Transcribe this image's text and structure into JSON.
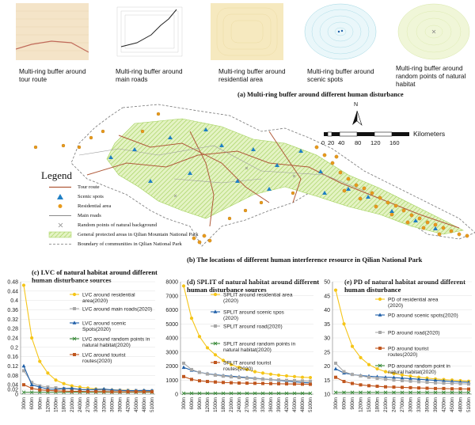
{
  "top_panel": {
    "thumbnails": [
      {
        "label": "Multi-ring buffer around tour route",
        "bg": "#f4e4c8"
      },
      {
        "label": "Multi-ring buffer around main roads",
        "bg": "#ffffff"
      },
      {
        "label": "Multi-ring buffer around residential area",
        "bg": "#f6e9bf"
      },
      {
        "label": "Multi-ring buffer around scenic spots",
        "bg": "#dff2f6"
      },
      {
        "label": "Multi-ring buffer around random points of natural habitat",
        "bg": "#f0f6d8"
      }
    ],
    "caption": "(a) Multi-ring buffer around different human disturbance"
  },
  "map_panel": {
    "north_label": "N",
    "scale_unit": "Kilometers",
    "scale_ticks": [
      "0",
      "20",
      "40",
      "80",
      "120",
      "160"
    ],
    "legend_title": "Legend",
    "legend_items": [
      {
        "label": "Tour route",
        "icon": "line-icon",
        "color": "#b05a3a"
      },
      {
        "label": "Scenic spots",
        "icon": "triangle-icon",
        "color": "#1f7fc4"
      },
      {
        "label": "Residential area",
        "icon": "dot-icon",
        "color": "#e89a1c"
      },
      {
        "label": "Main roads",
        "icon": "line-icon",
        "color": "#8a8a8a"
      },
      {
        "label": "Random points of natural background",
        "icon": "x-icon",
        "color": "#888888"
      },
      {
        "label": "General protected areas in Qilian Mountain National Park",
        "icon": "hatch-icon",
        "color": "#b7de7a"
      },
      {
        "label": "Boundary of communities in Qilian National Park",
        "icon": "dash-icon",
        "color": "#777777"
      }
    ],
    "caption": "(b) The locations of different human interference resource in Qilian National Park"
  },
  "chart_data": [
    {
      "type": "line",
      "title": "(c) LVC of natural habitat around different human disturbance sources",
      "x": [
        "300m",
        "600m",
        "900m",
        "1200m",
        "1500m",
        "1800m",
        "2100m",
        "2400m",
        "2700m",
        "3000m",
        "3300m",
        "3600m",
        "3900m",
        "4200m",
        "4500m",
        "4800m",
        "5100m"
      ],
      "ylim": [
        0,
        0.48
      ],
      "yticks": [
        "0",
        "0.02",
        "0.04",
        "0.08",
        "0.12",
        "0.16",
        "0.2",
        "0.24",
        "0.28",
        "0.32",
        "0.36",
        "0.4",
        "0.44",
        "0.48"
      ],
      "series": [
        {
          "name": "LVC around residential area(2020)",
          "color": "#f5c518",
          "marker": "circle",
          "values": [
            0.465,
            0.24,
            0.14,
            0.09,
            0.06,
            0.045,
            0.035,
            0.03,
            0.026,
            0.022,
            0.02,
            0.018,
            0.017,
            0.016,
            0.015,
            0.015,
            0.014
          ]
        },
        {
          "name": "LVC around main roads(2020)",
          "color": "#a8a8a8",
          "marker": "square",
          "values": [
            0.1,
            0.05,
            0.035,
            0.03,
            0.027,
            0.024,
            0.022,
            0.02,
            0.019,
            0.018,
            0.017,
            0.016,
            0.016,
            0.015,
            0.015,
            0.014,
            0.014
          ]
        },
        {
          "name": "LVC around scenic Spots(2020)",
          "color": "#1f5fa8",
          "marker": "triangle",
          "values": [
            0.12,
            0.04,
            0.03,
            0.022,
            0.02,
            0.024,
            0.025,
            0.02,
            0.018,
            0.02,
            0.022,
            0.018,
            0.016,
            0.015,
            0.015,
            0.016,
            0.015
          ]
        },
        {
          "name": "LVC around random points in natural habitat(2020)",
          "color": "#3a8a3a",
          "marker": "x",
          "values": [
            0.008,
            0.008,
            0.008,
            0.008,
            0.008,
            0.008,
            0.008,
            0.008,
            0.008,
            0.008,
            0.008,
            0.008,
            0.008,
            0.008,
            0.008,
            0.008,
            0.008
          ]
        },
        {
          "name": "LVC around tourist routes(2020)",
          "color": "#c0561e",
          "marker": "square",
          "values": [
            0.04,
            0.025,
            0.018,
            0.016,
            0.014,
            0.013,
            0.012,
            0.012,
            0.011,
            0.011,
            0.011,
            0.01,
            0.01,
            0.01,
            0.01,
            0.01,
            0.01
          ]
        }
      ]
    },
    {
      "type": "line",
      "title": "(d) SPLIT of natural habitat around different human disturbance sources",
      "x": [
        "300m",
        "600m",
        "900m",
        "1200m",
        "1500m",
        "1800m",
        "2100m",
        "2400m",
        "2700m",
        "3000m",
        "3300m",
        "3600m",
        "3900m",
        "4200m",
        "4500m",
        "4800m",
        "5100m"
      ],
      "ylim": [
        0,
        8000
      ],
      "yticks": [
        "0",
        "1000",
        "2000",
        "3000",
        "4000",
        "5000",
        "6000",
        "7000",
        "8000"
      ],
      "series": [
        {
          "name": "SPLIT around residential area (2020)",
          "color": "#f5c518",
          "marker": "circle",
          "values": [
            7700,
            5400,
            4100,
            3300,
            2800,
            2400,
            2100,
            1900,
            1750,
            1600,
            1500,
            1420,
            1350,
            1300,
            1250,
            1200,
            1180
          ]
        },
        {
          "name": "SPLIT around scenic spos (2020)",
          "color": "#1f5fa8",
          "marker": "triangle",
          "values": [
            1900,
            1700,
            1550,
            1450,
            1380,
            1320,
            1280,
            1230,
            1180,
            1130,
            1080,
            1030,
            980,
            930,
            880,
            830,
            800
          ]
        },
        {
          "name": "SPLIT around road(2020)",
          "color": "#a8a8a8",
          "marker": "square",
          "values": [
            2200,
            1750,
            1550,
            1430,
            1350,
            1280,
            1230,
            1180,
            1140,
            1100,
            1070,
            1040,
            1010,
            980,
            960,
            940,
            920
          ]
        },
        {
          "name": "SPLIT around random points in natural habitat(2020)",
          "color": "#3a8a3a",
          "marker": "x",
          "values": [
            60,
            60,
            60,
            60,
            60,
            60,
            60,
            60,
            60,
            60,
            60,
            60,
            60,
            60,
            60,
            60,
            60
          ]
        },
        {
          "name": "SPLIT around tourist routes(2020)",
          "color": "#c0561e",
          "marker": "square",
          "values": [
            1250,
            1050,
            950,
            900,
            860,
            830,
            810,
            790,
            780,
            770,
            760,
            750,
            740,
            730,
            720,
            710,
            700
          ]
        }
      ]
    },
    {
      "type": "line",
      "title": "(e) PD of natural habitat around different human disturbance",
      "x": [
        "300m",
        "600m",
        "900m",
        "1200m",
        "1500m",
        "1800m",
        "2100m",
        "2400m",
        "2700m",
        "3000m",
        "3300m",
        "3600m",
        "3900m",
        "4200m",
        "4500m",
        "4800m",
        "5100m"
      ],
      "ylim": [
        10,
        50
      ],
      "yticks": [
        "10",
        "15",
        "20",
        "25",
        "30",
        "35",
        "40",
        "45",
        "50"
      ],
      "series": [
        {
          "name": "PD of residential area (2020)",
          "color": "#f5c518",
          "marker": "circle",
          "values": [
            47,
            35,
            27,
            23,
            20.5,
            19,
            18,
            17.3,
            16.8,
            16.4,
            16,
            15.7,
            15.4,
            15.2,
            15,
            14.8,
            14.6
          ]
        },
        {
          "name": "PD around scenic spots(2020)",
          "color": "#1f5fa8",
          "marker": "triangle",
          "values": [
            19,
            17.5,
            17,
            16.6,
            16.4,
            16.2,
            16,
            15.9,
            15.7,
            15.5,
            15.3,
            15.1,
            14.9,
            14.7,
            14.5,
            14.3,
            14.2
          ]
        },
        {
          "name": "PD around road(2020)",
          "color": "#a8a8a8",
          "marker": "square",
          "values": [
            21,
            18,
            17,
            16.5,
            16,
            15.6,
            15.3,
            15,
            14.8,
            14.6,
            14.4,
            14.2,
            14,
            13.9,
            13.8,
            13.7,
            13.6
          ]
        },
        {
          "name": "PD around tourist routes(2020)",
          "color": "#c0561e",
          "marker": "square",
          "values": [
            16,
            14.5,
            13.8,
            13.3,
            13,
            12.8,
            12.6,
            12.5,
            12.4,
            12.3,
            12.2,
            12.1,
            12,
            12,
            11.9,
            11.9,
            11.8
          ]
        },
        {
          "name": "PD around random point in natural habitat(2020)",
          "color": "#3a8a3a",
          "marker": "x",
          "values": [
            10.6,
            10.6,
            10.6,
            10.6,
            10.6,
            10.6,
            10.6,
            10.6,
            10.6,
            10.6,
            10.6,
            10.6,
            10.6,
            10.6,
            10.6,
            10.6,
            10.6
          ]
        }
      ]
    }
  ]
}
